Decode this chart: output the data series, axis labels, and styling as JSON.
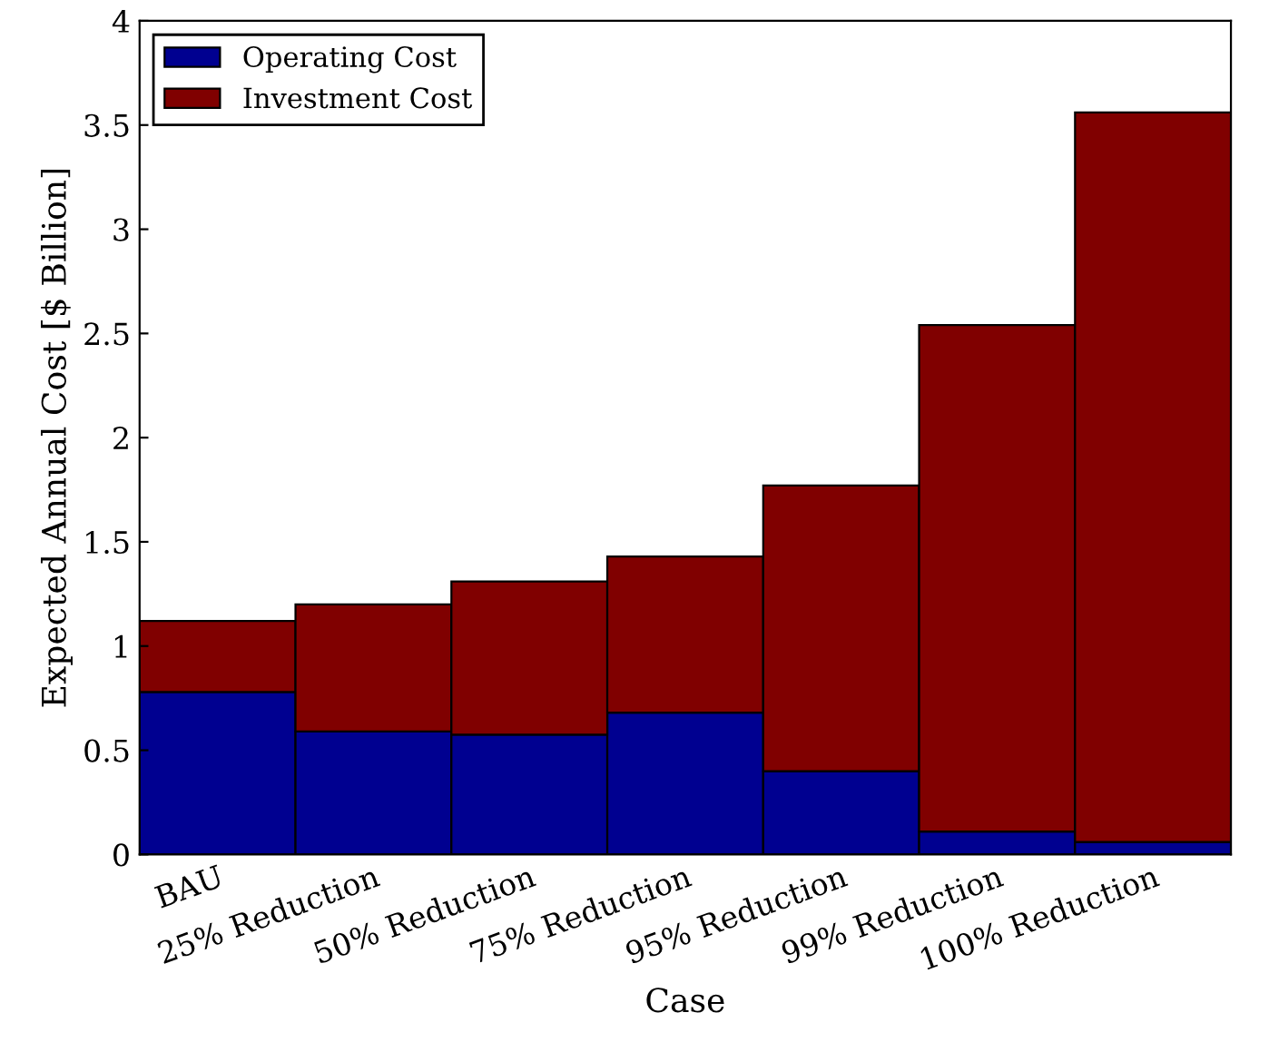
{
  "chart_data": {
    "type": "bar",
    "stacked": true,
    "xlabel": "Case",
    "ylabel": "Expected Annual Cost [$ Billion]",
    "categories": [
      "BAU",
      "25% Reduction",
      "50% Reduction",
      "75% Reduction",
      "95% Reduction",
      "99% Reduction",
      "100% Reduction"
    ],
    "series": [
      {
        "name": "Operating Cost",
        "color": "#000090",
        "values": [
          0.78,
          0.59,
          0.575,
          0.68,
          0.4,
          0.11,
          0.06
        ]
      },
      {
        "name": "Investment Cost",
        "color": "#800000",
        "values": [
          0.34,
          0.61,
          0.735,
          0.75,
          1.37,
          2.43,
          3.5
        ]
      }
    ],
    "ylim": [
      0,
      4
    ],
    "yticks": [
      0,
      0.5,
      1,
      1.5,
      2,
      2.5,
      3,
      3.5,
      4
    ],
    "legend": "top left",
    "grid": false
  }
}
